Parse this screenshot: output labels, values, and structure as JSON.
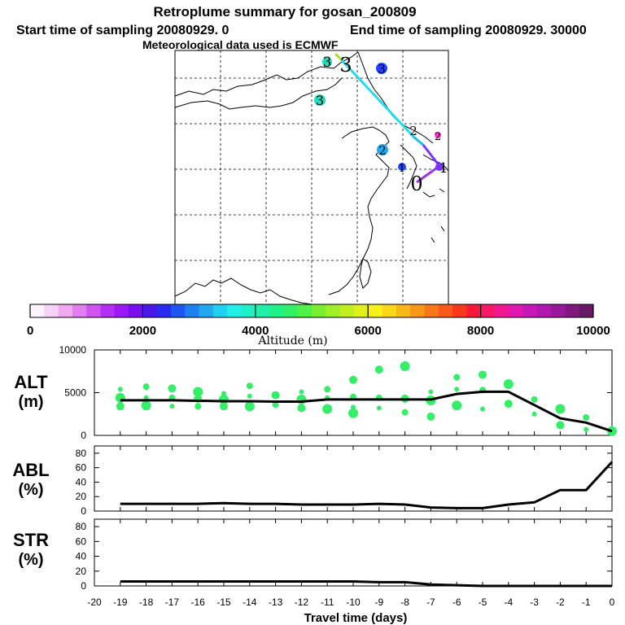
{
  "header": {
    "title": "Retroplume summary for gosan_200809",
    "line2_start": "Start time of sampling 20080929.    0",
    "line2_end": "End time of sampling 20080929. 30000",
    "line3": "Meteorological data used is ECMWF"
  },
  "colors": {
    "trajectory_main": "#22ddee",
    "trajectory_late": "#7733ff",
    "trajectory_start": "#aadd33",
    "series_line": "#000000",
    "cluster_points": "#33ee66"
  },
  "map": {
    "description_label": "",
    "markers": [
      {
        "label": "3",
        "color": "#22ddbb"
      },
      {
        "label": "3",
        "color": "#22ddbb"
      },
      {
        "label": "3",
        "color": "#2244ff"
      },
      {
        "label": "3",
        "color": "#22ddbb"
      },
      {
        "label": "2",
        "color": "#2244ff"
      },
      {
        "label": "2",
        "color": "#22aaee"
      },
      {
        "label": "2",
        "color": "#ff33cc"
      },
      {
        "label": "1",
        "color": "#2244ff"
      },
      {
        "label": "1",
        "color": "#7733ff"
      },
      {
        "label": "0",
        "color": "#7733ff"
      }
    ]
  },
  "colorbar": {
    "ticks": [
      "0",
      "2000",
      "4000",
      "6000",
      "8000",
      "10000"
    ],
    "label": "Altitude (m)",
    "colors": [
      "#fff2ff",
      "#f7d2f8",
      "#efaaf0",
      "#e37ef0",
      "#d055f0",
      "#b42ef5",
      "#9a18f5",
      "#7a0cf0",
      "#4a18e8",
      "#2a2af0",
      "#1f55f0",
      "#1f80f0",
      "#20a8f0",
      "#20d0f0",
      "#20f0e8",
      "#20f0c8",
      "#20f0a8",
      "#20f088",
      "#30f068",
      "#50f048",
      "#7af030",
      "#a0f028",
      "#c0f020",
      "#e0f018",
      "#f8f018",
      "#f8d818",
      "#f8b818",
      "#f89818",
      "#f87818",
      "#f85818",
      "#f83818",
      "#f81838",
      "#f81868",
      "#f01890",
      "#e018b0",
      "#c818b8",
      "#b018b0",
      "#981898",
      "#801880",
      "#681868"
    ]
  },
  "chart_data": [
    {
      "type": "line",
      "panel": "ALT",
      "ylabel_line1": "ALT",
      "ylabel_line2": "(m)",
      "ylim": [
        0,
        10000
      ],
      "yticks": [
        "10000",
        "5000",
        "0"
      ],
      "x": [
        -19,
        -18,
        -17,
        -16,
        -15,
        -14,
        -13,
        -12,
        -11,
        -10,
        -9,
        -8,
        -7,
        -6,
        -5,
        -4,
        -3,
        -2,
        -1,
        0
      ],
      "series": [
        {
          "name": "ALT",
          "values": [
            4100,
            4100,
            4100,
            4050,
            4000,
            4000,
            3950,
            3950,
            4200,
            4200,
            4200,
            4200,
            4200,
            4850,
            5100,
            5100,
            3550,
            2000,
            1500,
            500
          ]
        }
      ],
      "clusters": [
        {
          "x": -19,
          "y": 5400
        },
        {
          "x": -19,
          "y": 4400
        },
        {
          "x": -19,
          "y": 3400
        },
        {
          "x": -18,
          "y": 5700
        },
        {
          "x": -18,
          "y": 4400
        },
        {
          "x": -18,
          "y": 3500
        },
        {
          "x": -17,
          "y": 5500
        },
        {
          "x": -17,
          "y": 4400
        },
        {
          "x": -17,
          "y": 3400
        },
        {
          "x": -16,
          "y": 5100
        },
        {
          "x": -16,
          "y": 4300
        },
        {
          "x": -16,
          "y": 3400
        },
        {
          "x": -15,
          "y": 4900
        },
        {
          "x": -15,
          "y": 4200
        },
        {
          "x": -15,
          "y": 3400
        },
        {
          "x": -14,
          "y": 5800
        },
        {
          "x": -14,
          "y": 4600
        },
        {
          "x": -14,
          "y": 3400
        },
        {
          "x": -13,
          "y": 4700
        },
        {
          "x": -13,
          "y": 3600
        },
        {
          "x": -12,
          "y": 5100
        },
        {
          "x": -12,
          "y": 4200
        },
        {
          "x": -12,
          "y": 3200
        },
        {
          "x": -11,
          "y": 5400
        },
        {
          "x": -11,
          "y": 4400
        },
        {
          "x": -11,
          "y": 3100
        },
        {
          "x": -10,
          "y": 6500
        },
        {
          "x": -10,
          "y": 4500
        },
        {
          "x": -10,
          "y": 3300
        },
        {
          "x": -10,
          "y": 2600
        },
        {
          "x": -9,
          "y": 7700
        },
        {
          "x": -9,
          "y": 4400
        },
        {
          "x": -9,
          "y": 3200
        },
        {
          "x": -8,
          "y": 8100
        },
        {
          "x": -8,
          "y": 4300
        },
        {
          "x": -8,
          "y": 2700
        },
        {
          "x": -7,
          "y": 5100
        },
        {
          "x": -7,
          "y": 4100
        },
        {
          "x": -7,
          "y": 2200
        },
        {
          "x": -6,
          "y": 6800
        },
        {
          "x": -6,
          "y": 5400
        },
        {
          "x": -6,
          "y": 3500
        },
        {
          "x": -5,
          "y": 7100
        },
        {
          "x": -5,
          "y": 5300
        },
        {
          "x": -5,
          "y": 3100
        },
        {
          "x": -4,
          "y": 6000
        },
        {
          "x": -4,
          "y": 3700
        },
        {
          "x": -3,
          "y": 4200
        },
        {
          "x": -3,
          "y": 2500
        },
        {
          "x": -2,
          "y": 3100
        },
        {
          "x": -2,
          "y": 1200
        },
        {
          "x": -1,
          "y": 2100
        },
        {
          "x": -1,
          "y": 700
        },
        {
          "x": 0,
          "y": 500
        }
      ]
    },
    {
      "type": "line",
      "panel": "ABL",
      "ylabel_line1": "ABL",
      "ylabel_line2": "(%)",
      "ylim": [
        0,
        90
      ],
      "yticks": [
        "80",
        "60",
        "40",
        "20",
        "0"
      ],
      "x": [
        -19,
        -18,
        -17,
        -16,
        -15,
        -14,
        -13,
        -12,
        -11,
        -10,
        -9,
        -8,
        -7,
        -6,
        -5,
        -4,
        -3,
        -2,
        -1,
        0
      ],
      "series": [
        {
          "name": "ABL",
          "values": [
            10,
            10,
            10,
            10,
            11,
            10,
            10,
            9,
            9,
            9,
            10,
            9,
            5,
            4,
            4,
            9,
            12,
            29,
            29,
            68
          ]
        }
      ]
    },
    {
      "type": "line",
      "panel": "STR",
      "ylabel_line1": "STR",
      "ylabel_line2": "(%)",
      "ylim": [
        0,
        90
      ],
      "yticks": [
        "80",
        "60",
        "40",
        "20",
        "0"
      ],
      "xlabel": "Travel time (days)",
      "xticks": [
        "-20",
        "-19",
        "-18",
        "-17",
        "-16",
        "-15",
        "-14",
        "-13",
        "-12",
        "-11",
        "-10",
        "-9",
        "-8",
        "-7",
        "-6",
        "-5",
        "-4",
        "-3",
        "-2",
        "-1",
        "0"
      ],
      "x": [
        -19,
        -18,
        -17,
        -16,
        -15,
        -14,
        -13,
        -12,
        -11,
        -10,
        -9,
        -8,
        -7,
        -6,
        -5,
        -4,
        -3,
        -2,
        -1,
        0
      ],
      "series": [
        {
          "name": "STR",
          "values": [
            6,
            6,
            6,
            6,
            6,
            6,
            6,
            6,
            6,
            6,
            5,
            5,
            2,
            1,
            0,
            0,
            0,
            0,
            0,
            0
          ]
        }
      ]
    }
  ]
}
